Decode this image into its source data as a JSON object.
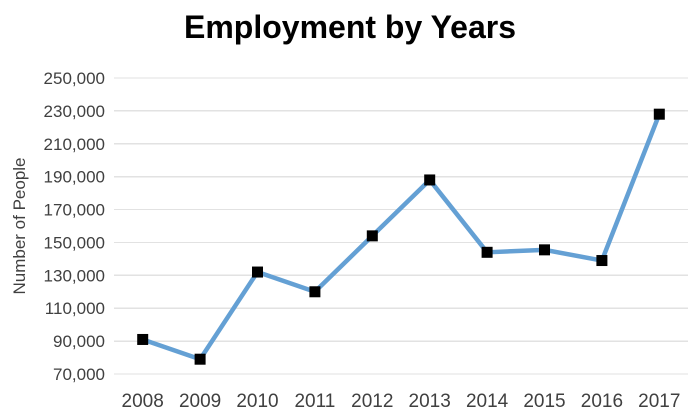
{
  "chart_data": {
    "type": "line",
    "title": "Employment by Years",
    "xlabel": "",
    "ylabel": "Number of People",
    "categories": [
      "2008",
      "2009",
      "2010",
      "2011",
      "2012",
      "2013",
      "2014",
      "2015",
      "2016",
      "2017"
    ],
    "series": [
      {
        "name": "Employment",
        "values": [
          91000,
          79000,
          132000,
          120000,
          154000,
          188000,
          144000,
          145500,
          139000,
          228000
        ]
      }
    ],
    "ylim": [
      70000,
      250000
    ],
    "ytick_values": [
      250000,
      230000,
      210000,
      190000,
      170000,
      150000,
      130000,
      110000,
      90000,
      70000
    ],
    "ytick_labels": [
      "250,000",
      "230,000",
      "210,000",
      "190,000",
      "170,000",
      "150,000",
      "130,000",
      "110,000",
      "90,000",
      "70,000"
    ],
    "grid": "horizontal-only",
    "legend": "none",
    "marker": "filled-square",
    "colors": {
      "line": "#64a0d4",
      "marker": "#000000",
      "grid": "#e2e2e2",
      "tick_text": "#404040",
      "title_text": "#000000",
      "background": "#ffffff"
    }
  }
}
